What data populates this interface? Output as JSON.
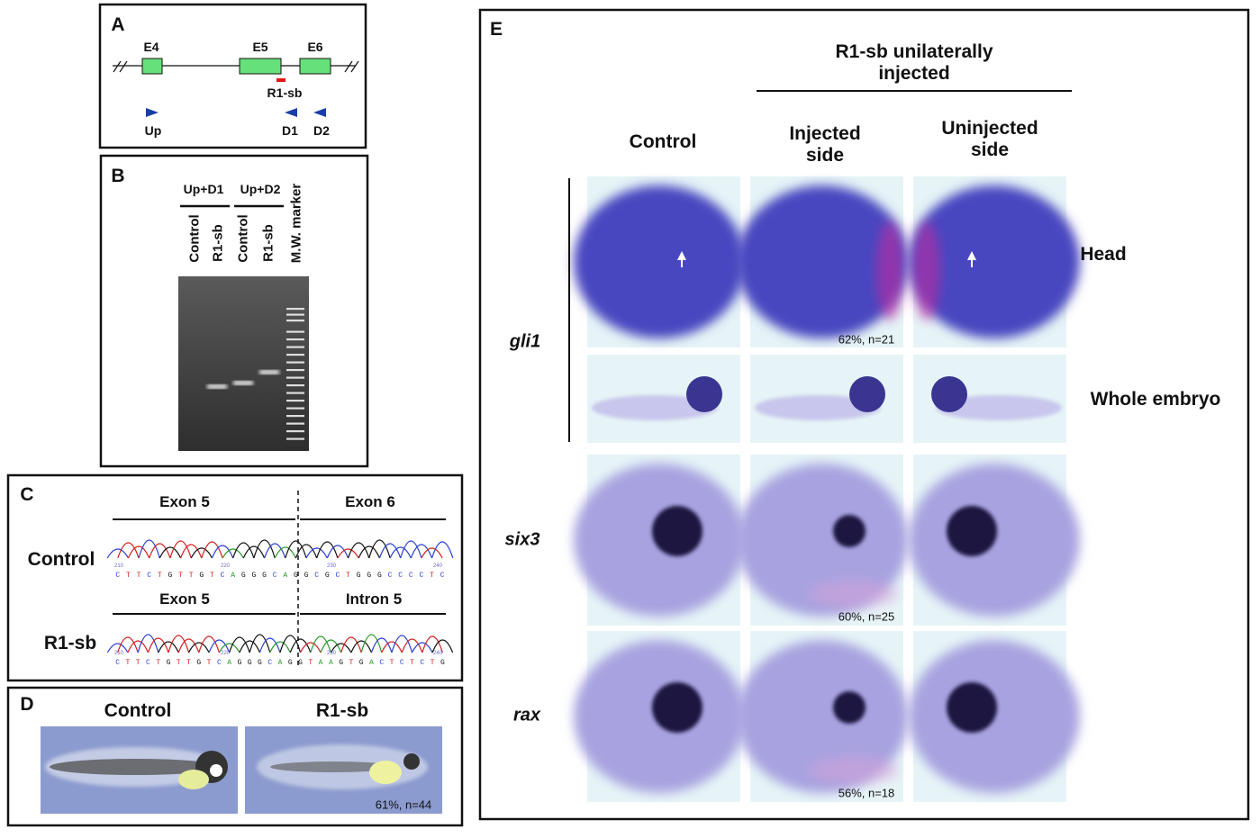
{
  "panel_a": {
    "label": "A",
    "exons": [
      "E4",
      "E5",
      "E6"
    ],
    "morpholino": "R1-sb",
    "primers": [
      "Up",
      "D1",
      "D2"
    ]
  },
  "panel_b": {
    "label": "B",
    "groups": [
      "Up+D1",
      "Up+D2"
    ],
    "lanes": [
      "Control",
      "R1-sb",
      "Control",
      "R1-sb",
      "M.W. marker"
    ]
  },
  "panel_c": {
    "label": "C",
    "rows": [
      {
        "name": "Control",
        "left": "Exon 5",
        "right": "Exon 6",
        "positions": [
          "210",
          "220",
          "230",
          "240"
        ],
        "sequence": "CTTCTGTTGTCAGGGCAGGCGCTGGGCCCCTC"
      },
      {
        "name": "R1-sb",
        "left": "Exon 5",
        "right": "Intron 5",
        "positions": [
          "210",
          "220",
          "230",
          "240"
        ],
        "sequence": "CTTCTGTTGTCAGGGCAGGTAAGTGACTCTCTG"
      }
    ]
  },
  "panel_d": {
    "label": "D",
    "columns": [
      "Control",
      "R1-sb"
    ],
    "stat": "61%, n=44"
  },
  "panel_e": {
    "label": "E",
    "group_title": "R1-sb unilaterally injected",
    "columns": [
      "Control",
      "Injected side",
      "Uninjected side"
    ],
    "rows": [
      {
        "gene": "gli1",
        "views": [
          "Head",
          "Whole embryo"
        ],
        "stat": "62%, n=21"
      },
      {
        "gene": "six3",
        "stat": "60%, n=25"
      },
      {
        "gene": "rax",
        "stat": "56%, n=18"
      }
    ]
  }
}
